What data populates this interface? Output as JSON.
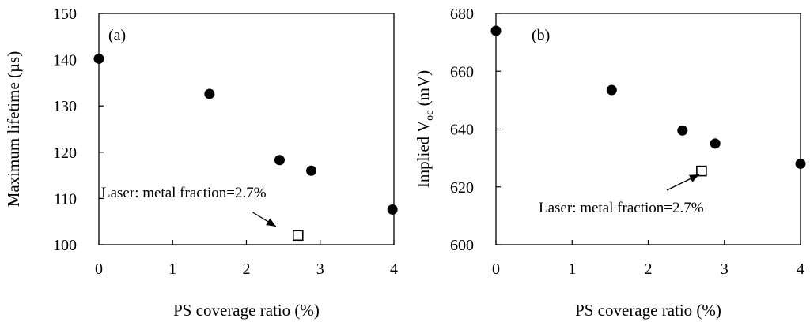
{
  "chart_data": [
    {
      "type": "scatter",
      "panel_label": "(a)",
      "xlabel": "PS coverage ratio (%)",
      "ylabel": "Maximum lifetime (µs)",
      "xlim": [
        0,
        4
      ],
      "ylim": [
        100,
        150
      ],
      "xticks": [
        "0",
        "1",
        "2",
        "3",
        "4"
      ],
      "yticks": [
        "100",
        "110",
        "120",
        "130",
        "140",
        "150"
      ],
      "grid": false,
      "series": [
        {
          "marker": "filled-circle",
          "x": [
            0,
            1.5,
            2.45,
            2.88,
            3.98
          ],
          "y": [
            140.2,
            132.6,
            118.3,
            116.0,
            107.6
          ]
        },
        {
          "marker": "open-square",
          "x": [
            2.7
          ],
          "y": [
            102
          ]
        }
      ],
      "annotation": {
        "text": "Laser: metal fraction=2.7%",
        "arrow_to": "open-square"
      }
    },
    {
      "type": "scatter",
      "panel_label": "(b)",
      "xlabel": "PS coverage ratio (%)",
      "ylabel": "Implied V",
      "ylabel_sub": "oc",
      "ylabel_unit": " (mV)",
      "xlim": [
        0,
        4
      ],
      "ylim": [
        600,
        680
      ],
      "xticks": [
        "0",
        "1",
        "2",
        "3",
        "4"
      ],
      "yticks": [
        "600",
        "620",
        "640",
        "660",
        "680"
      ],
      "grid": false,
      "series": [
        {
          "marker": "filled-circle",
          "x": [
            0,
            1.52,
            2.45,
            2.88,
            4.0
          ],
          "y": [
            674,
            653.5,
            639.5,
            635,
            628
          ]
        },
        {
          "marker": "open-square",
          "x": [
            2.7
          ],
          "y": [
            625.5
          ]
        }
      ],
      "annotation": {
        "text": "Laser: metal fraction=2.7%",
        "arrow_to": "open-square"
      }
    }
  ]
}
